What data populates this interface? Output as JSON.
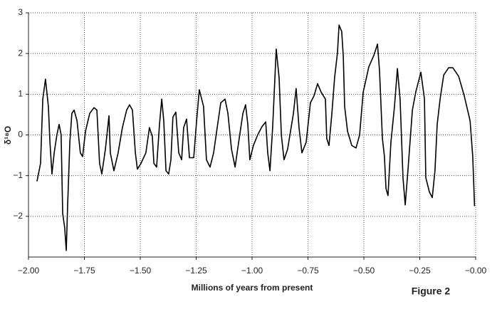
{
  "chart_data": {
    "type": "line",
    "xlabel": "Millions of years from present",
    "ylabel": "δ¹⁸O",
    "annotation": "Figure 2",
    "color": "#000000",
    "grid": true,
    "xlim": [
      -2,
      0
    ],
    "ylim": [
      -3,
      3
    ],
    "xticks": [
      {
        "value": -2,
        "label": "−2.00"
      },
      {
        "value": -1.75,
        "label": "−1.75"
      },
      {
        "value": -1.5,
        "label": "−1.50"
      },
      {
        "value": -1.25,
        "label": "−1.25"
      },
      {
        "value": -1,
        "label": "−1.00"
      },
      {
        "value": -0.75,
        "label": "−0.75"
      },
      {
        "value": -0.5,
        "label": "−0.50"
      },
      {
        "value": -0.25,
        "label": "−0.25"
      },
      {
        "value": 0,
        "label": "−0.00"
      }
    ],
    "yticks": [
      {
        "value": -2,
        "label": "−2"
      },
      {
        "value": -1,
        "label": "−1"
      },
      0,
      1,
      2,
      3
    ],
    "x": [
      -1.962,
      -1.946,
      -1.936,
      -1.924,
      -1.911,
      -1.904,
      -1.895,
      -1.885,
      -1.873,
      -1.863,
      -1.854,
      -1.847,
      -1.838,
      -1.831,
      -1.825,
      -1.815,
      -1.806,
      -1.796,
      -1.783,
      -1.768,
      -1.758,
      -1.745,
      -1.726,
      -1.707,
      -1.694,
      -1.682,
      -1.672,
      -1.656,
      -1.64,
      -1.634,
      -1.618,
      -1.599,
      -1.58,
      -1.561,
      -1.548,
      -1.535,
      -1.522,
      -1.513,
      -1.497,
      -1.475,
      -1.459,
      -1.446,
      -1.439,
      -1.427,
      -1.414,
      -1.404,
      -1.395,
      -1.385,
      -1.373,
      -1.363,
      -1.354,
      -1.341,
      -1.328,
      -1.315,
      -1.306,
      -1.293,
      -1.28,
      -1.261,
      -1.248,
      -1.236,
      -1.217,
      -1.204,
      -1.188,
      -1.172,
      -1.156,
      -1.14,
      -1.121,
      -1.108,
      -1.092,
      -1.076,
      -1.06,
      -1.041,
      -1.029,
      -1.019,
      -1.01,
      -0.994,
      -0.975,
      -0.955,
      -0.939,
      -0.93,
      -0.92,
      -0.908,
      -0.892,
      -0.879,
      -0.869,
      -0.857,
      -0.841,
      -0.815,
      -0.803,
      -0.79,
      -0.777,
      -0.758,
      -0.739,
      -0.723,
      -0.707,
      -0.691,
      -0.672,
      -0.666,
      -0.656,
      -0.643,
      -0.631,
      -0.618,
      -0.611,
      -0.599,
      -0.592,
      -0.586,
      -0.573,
      -0.554,
      -0.535,
      -0.519,
      -0.503,
      -0.478,
      -0.455,
      -0.439,
      -0.43,
      -0.417,
      -0.408,
      -0.401,
      -0.392,
      -0.379,
      -0.363,
      -0.35,
      -0.338,
      -0.325,
      -0.315,
      -0.303,
      -0.283,
      -0.268,
      -0.245,
      -0.229,
      -0.223,
      -0.207,
      -0.194,
      -0.182,
      -0.172,
      -0.159,
      -0.143,
      -0.121,
      -0.102,
      -0.076,
      -0.051,
      -0.025,
      -0.013,
      -0.005
    ],
    "values": [
      -1.14,
      -0.7,
      0.88,
      1.37,
      0.7,
      -0.18,
      -0.96,
      -0.44,
      0,
      0.26,
      0,
      -1.93,
      -2.28,
      -2.84,
      -1.75,
      -0.18,
      0.53,
      0.61,
      0.35,
      -0.44,
      -0.53,
      0.09,
      0.53,
      0.67,
      0.61,
      -0.7,
      -0.96,
      -0.35,
      0.47,
      -0.44,
      -0.88,
      -0.44,
      0.18,
      0.61,
      0.74,
      0.61,
      -0.44,
      -0.84,
      -0.7,
      -0.44,
      0.18,
      -0.04,
      -0.7,
      -0.79,
      0.26,
      0.88,
      0.35,
      -0.88,
      -0.96,
      -0.61,
      0.44,
      0.56,
      -0.44,
      -0.61,
      0.18,
      0.39,
      -0.56,
      -0.56,
      0.35,
      1.11,
      0.7,
      -0.61,
      -0.79,
      -0.44,
      0.18,
      0.79,
      0.88,
      0.53,
      -0.35,
      -0.79,
      -0.18,
      0.53,
      0.74,
      0.26,
      -0.61,
      -0.26,
      0,
      0.21,
      0.32,
      -0.44,
      -0.88,
      0.18,
      2.11,
      1.4,
      0,
      -0.61,
      -0.35,
      0.53,
      1.14,
      0.18,
      -0.44,
      -0.18,
      0.79,
      0.96,
      1.26,
      1.05,
      0.88,
      -0.09,
      -0.26,
      0.53,
      1.4,
      2.02,
      2.7,
      2.54,
      1.93,
      0.7,
      0.09,
      -0.26,
      -0.32,
      0,
      1.05,
      1.67,
      1.96,
      2.23,
      1.58,
      -0.09,
      -0.53,
      -1.32,
      -1.49,
      -0.18,
      0.7,
      1.63,
      0.88,
      -1.05,
      -1.72,
      -0.88,
      0.61,
      1.05,
      1.54,
      0.88,
      -1.05,
      -1.4,
      -1.54,
      -0.88,
      0.26,
      0.88,
      1.47,
      1.65,
      1.65,
      1.44,
      0.96,
      0.35,
      -0.53,
      -1.75
    ]
  }
}
